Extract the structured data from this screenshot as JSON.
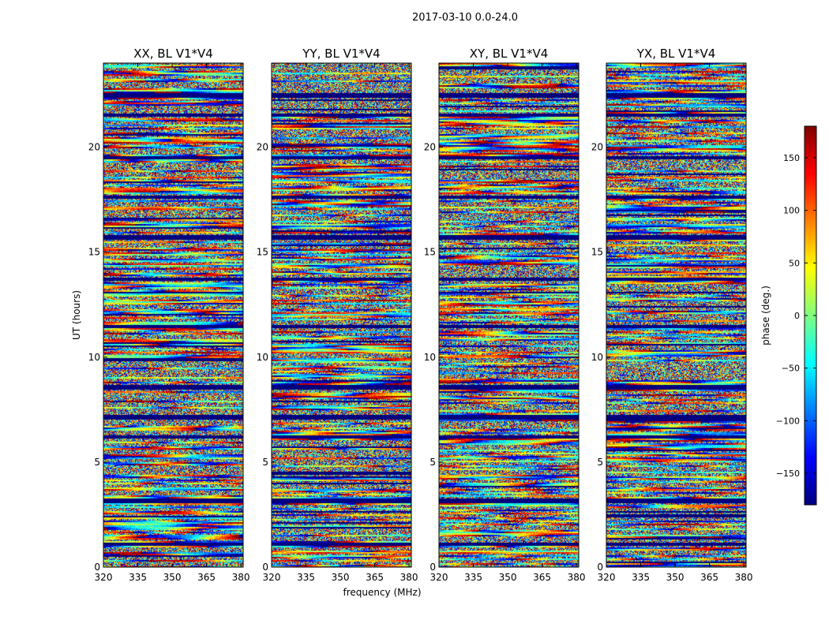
{
  "figure": {
    "suptitle": "2017-03-10 0.0-24.0"
  },
  "colors": {
    "jet": [
      "#00007f",
      "#0000ff",
      "#007fff",
      "#00ffff",
      "#7fff7f",
      "#ffff00",
      "#ff7f00",
      "#ff0000",
      "#7f0000"
    ],
    "axis": "#000000",
    "background": "#ffffff"
  },
  "chart_data": [
    {
      "type": "heatmap",
      "title": "XX, BL V1*V4",
      "xlabel": "",
      "ylabel": "UT (hours)",
      "xlim": [
        320,
        381
      ],
      "ylim": [
        0,
        24
      ],
      "xticks": [
        320,
        335,
        350,
        365,
        380
      ],
      "yticks": [
        0,
        5,
        10,
        15,
        20
      ],
      "z": "phase (deg.)",
      "zlim": [
        -180,
        180
      ]
    },
    {
      "type": "heatmap",
      "title": "YY, BL V1*V4",
      "xlabel": "frequency (MHz)",
      "ylabel": "",
      "xlim": [
        320,
        381
      ],
      "ylim": [
        0,
        24
      ],
      "xticks": [
        320,
        335,
        350,
        365,
        380
      ],
      "yticks": [
        0,
        5,
        10,
        15,
        20
      ],
      "z": "phase (deg.)",
      "zlim": [
        -180,
        180
      ]
    },
    {
      "type": "heatmap",
      "title": "XY, BL V1*V4",
      "xlabel": "",
      "ylabel": "",
      "xlim": [
        320,
        381
      ],
      "ylim": [
        0,
        24
      ],
      "xticks": [
        320,
        335,
        350,
        365,
        380
      ],
      "yticks": [
        0,
        5,
        10,
        15,
        20
      ],
      "z": "phase (deg.)",
      "zlim": [
        -180,
        180
      ]
    },
    {
      "type": "heatmap",
      "title": "YX, BL V1*V4",
      "xlabel": "",
      "ylabel": "",
      "xlim": [
        320,
        381
      ],
      "ylim": [
        0,
        24
      ],
      "xticks": [
        320,
        335,
        350,
        365,
        380
      ],
      "yticks": [
        0,
        5,
        10,
        15,
        20
      ],
      "z": "phase (deg.)",
      "zlim": [
        -180,
        180
      ]
    }
  ],
  "colorbar": {
    "label": "phase (deg.)",
    "range": [
      -180,
      180
    ],
    "ticks": [
      150,
      100,
      50,
      0,
      -50,
      -100,
      -150
    ],
    "tick_labels": [
      "150",
      "100",
      "50",
      "0",
      "−50",
      "−100",
      "−150"
    ]
  }
}
